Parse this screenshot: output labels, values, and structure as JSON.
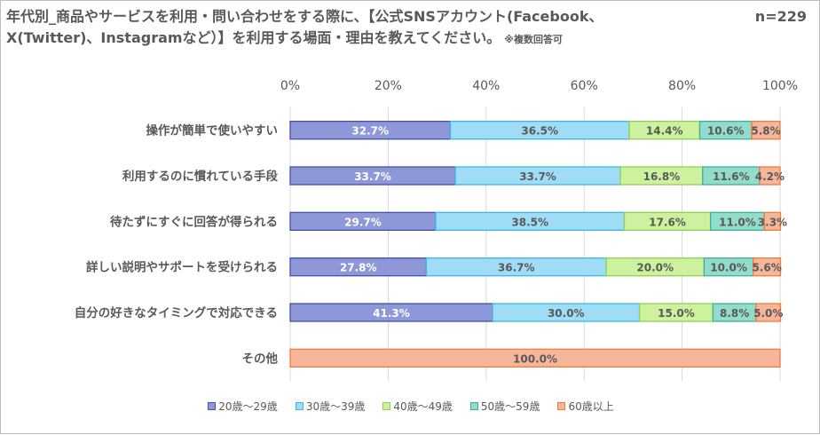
{
  "title": "年代別_商品やサービスを利用・問い合わせをする際に、【公式SNSアカウント(Facebook、X(Twitter)、Instagramなど）】を利用する場面・理由を教えてください。",
  "note": "※複数回答可",
  "sample": "n=229",
  "colors": {
    "series_fill": [
      "#8e97d8",
      "#9fdcf5",
      "#cdf19e",
      "#92dccb",
      "#f7b59a"
    ],
    "series_stroke": [
      "#4450ab",
      "#3fb6e6",
      "#92d050",
      "#3cb394",
      "#ee7d3b"
    ],
    "label_text": [
      "#ffffff",
      "#595959",
      "#595959",
      "#595959",
      "#595959"
    ]
  },
  "chart_data": {
    "type": "bar",
    "orientation": "horizontal",
    "stacked": "percent",
    "categories": [
      "操作が簡単で使いやすい",
      "利用するのに慣れている手段",
      "待たずにすぐに回答が得られる",
      "詳しい説明やサポートを受けられる",
      "自分の好きなタイミングで対応できる",
      "その他"
    ],
    "series": [
      {
        "name": "20歳～29歳",
        "values": [
          32.7,
          33.7,
          29.7,
          27.8,
          41.3,
          0
        ]
      },
      {
        "name": "30歳～39歳",
        "values": [
          36.5,
          33.7,
          38.5,
          36.7,
          30.0,
          0
        ]
      },
      {
        "name": "40歳～49歳",
        "values": [
          14.4,
          16.8,
          17.6,
          20.0,
          15.0,
          0
        ]
      },
      {
        "name": "50歳～59歳",
        "values": [
          10.6,
          11.6,
          11.0,
          10.0,
          8.8,
          0
        ]
      },
      {
        "name": "60歳以上",
        "values": [
          5.8,
          4.2,
          3.3,
          5.6,
          5.0,
          100.0
        ]
      }
    ],
    "x_ticks": [
      "0%",
      "20%",
      "40%",
      "60%",
      "80%",
      "100%"
    ],
    "xlim": [
      0,
      100
    ],
    "grid": true,
    "legend_position": "bottom"
  }
}
